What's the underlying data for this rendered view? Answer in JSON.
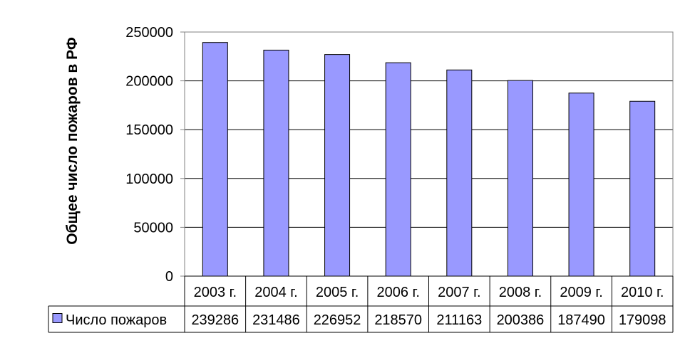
{
  "chart_data": {
    "type": "bar",
    "ylabel": "Общее число пожаров в РФ",
    "xlabel": "",
    "categories": [
      "2003 г.",
      "2004 г.",
      "2005 г.",
      "2006 г.",
      "2007 г.",
      "2008 г.",
      "2009 г.",
      "2010 г."
    ],
    "series": [
      {
        "name": "Число пожаров",
        "values": [
          239286,
          231486,
          226952,
          218570,
          211163,
          200386,
          187490,
          179098
        ]
      }
    ],
    "ylim": [
      0,
      250000
    ],
    "yticks": [
      0,
      50000,
      100000,
      150000,
      200000,
      250000
    ],
    "grid": true,
    "data_table": true,
    "colors": {
      "bar": "#9999ff",
      "bar_stroke": "#000000",
      "plot_border": "#808080",
      "grid": "#000000"
    }
  }
}
